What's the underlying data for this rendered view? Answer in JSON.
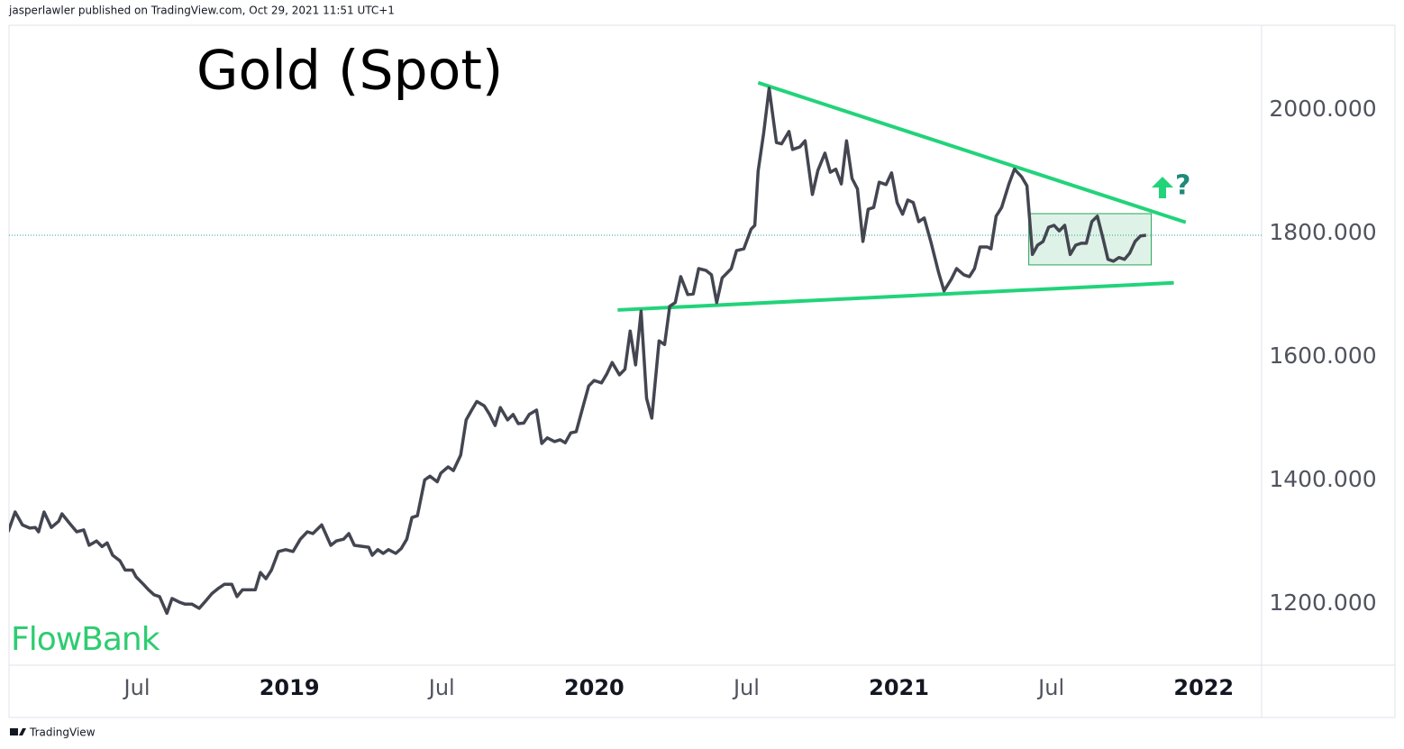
{
  "header": {
    "text": "jasperlawler published on TradingView.com, Oct 29, 2021 11:51 UTC+1"
  },
  "logo": {
    "text": "FlowBank"
  },
  "footer": {
    "text": "TradingView"
  },
  "chart_data": {
    "type": "line",
    "title": "Gold (Spot)",
    "color": "#434651",
    "x": [
      2018.077,
      2018.1,
      2018.124,
      2018.148,
      2018.166,
      2018.177,
      2018.195,
      2018.219,
      2018.243,
      2018.254,
      2018.278,
      2018.302,
      2018.325,
      2018.343,
      2018.367,
      2018.385,
      2018.402,
      2018.42,
      2018.444,
      2018.461,
      2018.485,
      2018.497,
      2018.521,
      2018.538,
      2018.556,
      2018.574,
      2018.598,
      2018.615,
      2018.639,
      2018.657,
      2018.68,
      2018.704,
      2018.722,
      2018.746,
      2018.769,
      2018.787,
      2018.811,
      2018.828,
      2018.846,
      2018.87,
      2018.888,
      2018.905,
      2018.923,
      2018.941,
      2018.964,
      2018.988,
      2019.012,
      2019.036,
      2019.059,
      2019.077,
      2019.106,
      2019.136,
      2019.154,
      2019.178,
      2019.195,
      2019.213,
      2019.243,
      2019.26,
      2019.272,
      2019.29,
      2019.308,
      2019.325,
      2019.349,
      2019.367,
      2019.385,
      2019.402,
      2019.42,
      2019.444,
      2019.461,
      2019.485,
      2019.497,
      2019.521,
      2019.538,
      2019.562,
      2019.58,
      2019.598,
      2019.615,
      2019.639,
      2019.657,
      2019.675,
      2019.692,
      2019.716,
      2019.734,
      2019.751,
      2019.769,
      2019.787,
      2019.811,
      2019.828,
      2019.846,
      2019.87,
      2019.888,
      2019.905,
      2019.923,
      2019.941,
      2019.964,
      2019.982,
      2020.0,
      2020.024,
      2020.041,
      2020.059,
      2020.083,
      2020.101,
      2020.118,
      2020.136,
      2020.154,
      2020.172,
      2020.189,
      2020.213,
      2020.231,
      2020.248,
      2020.266,
      2020.284,
      2020.307,
      2020.325,
      2020.343,
      2020.367,
      2020.385,
      2020.402,
      2020.42,
      2020.438,
      2020.45,
      2020.467,
      2020.491,
      2020.515,
      2020.527,
      2020.538,
      2020.556,
      2020.574,
      2020.598,
      2020.615,
      2020.639,
      2020.651,
      2020.675,
      2020.692,
      2020.716,
      2020.734,
      2020.757,
      2020.775,
      2020.793,
      2020.811,
      2020.828,
      2020.846,
      2020.864,
      2020.882,
      2020.899,
      2020.917,
      2020.935,
      2020.958,
      2020.976,
      2020.994,
      2021.012,
      2021.029,
      2021.047,
      2021.065,
      2021.083,
      2021.106,
      2021.13,
      2021.148,
      2021.172,
      2021.189,
      2021.213,
      2021.231,
      2021.248,
      2021.266,
      2021.29,
      2021.302,
      2021.319,
      2021.337,
      2021.361,
      2021.379,
      2021.402,
      2021.42,
      2021.438,
      2021.455,
      2021.473,
      2021.491,
      2021.509,
      2021.526,
      2021.544,
      2021.562,
      2021.58,
      2021.598,
      2021.615,
      2021.633,
      2021.651,
      2021.669,
      2021.686,
      2021.704,
      2021.722,
      2021.74,
      2021.757,
      2021.775,
      2021.793,
      2021.811
    ],
    "values": [
      1317,
      1349,
      1328,
      1323,
      1324,
      1317,
      1349,
      1324,
      1334,
      1346,
      1331,
      1317,
      1320,
      1295,
      1302,
      1293,
      1299,
      1279,
      1270,
      1255,
      1255,
      1244,
      1232,
      1223,
      1215,
      1212,
      1185,
      1209,
      1203,
      1200,
      1200,
      1193,
      1203,
      1217,
      1226,
      1232,
      1232,
      1212,
      1223,
      1223,
      1223,
      1251,
      1241,
      1255,
      1285,
      1288,
      1285,
      1305,
      1317,
      1314,
      1328,
      1295,
      1302,
      1305,
      1314,
      1295,
      1293,
      1292,
      1279,
      1288,
      1282,
      1288,
      1282,
      1290,
      1305,
      1340,
      1343,
      1401,
      1407,
      1398,
      1412,
      1422,
      1416,
      1441,
      1498,
      1514,
      1528,
      1521,
      1507,
      1489,
      1518,
      1498,
      1507,
      1492,
      1493,
      1507,
      1514,
      1460,
      1469,
      1463,
      1466,
      1461,
      1477,
      1479,
      1521,
      1553,
      1562,
      1558,
      1572,
      1591,
      1571,
      1580,
      1642,
      1587,
      1674,
      1533,
      1501,
      1626,
      1620,
      1682,
      1688,
      1730,
      1701,
      1702,
      1743,
      1740,
      1733,
      1688,
      1728,
      1737,
      1743,
      1772,
      1775,
      1807,
      1813,
      1901,
      1962,
      2035,
      1947,
      1945,
      1965,
      1936,
      1940,
      1950,
      1863,
      1902,
      1930,
      1899,
      1904,
      1880,
      1950,
      1889,
      1872,
      1787,
      1839,
      1842,
      1883,
      1879,
      1898,
      1850,
      1831,
      1854,
      1850,
      1819,
      1825,
      1784,
      1737,
      1707,
      1726,
      1743,
      1733,
      1730,
      1743,
      1778,
      1778,
      1775,
      1828,
      1842,
      1880,
      1904,
      1892,
      1877,
      1766,
      1781,
      1787,
      1810,
      1813,
      1804,
      1813,
      1766,
      1781,
      1784,
      1784,
      1819,
      1828,
      1793,
      1758,
      1755,
      1761,
      1758,
      1768,
      1787,
      1796,
      1797
    ],
    "xlim": [
      2018.08,
      2022.19
    ],
    "xticks": [
      {
        "value": 2018.5,
        "label": "Jul"
      },
      {
        "value": 2019,
        "label": "2019"
      },
      {
        "value": 2019.5,
        "label": "Jul"
      },
      {
        "value": 2020,
        "label": "2020"
      },
      {
        "value": 2020.5,
        "label": "Jul"
      },
      {
        "value": 2021,
        "label": "2021"
      },
      {
        "value": 2021.5,
        "label": "Jul"
      },
      {
        "value": 2022,
        "label": "2022"
      }
    ],
    "ylim": [
      1101,
      2137
    ],
    "yticks": [
      {
        "value": 1200,
        "label": "1200.000"
      },
      {
        "value": 1400,
        "label": "1400.000"
      },
      {
        "value": 1600,
        "label": "1600.000"
      },
      {
        "value": 1800,
        "label": "1800.000"
      },
      {
        "value": 2000,
        "label": "2000.000"
      }
    ],
    "annotations": {
      "trendlines": [
        {
          "x": [
            2020.538,
            2021.941
          ],
          "y": [
            2044,
            1818
          ],
          "color": "#22d37a"
        },
        {
          "x": [
            2020.077,
            2021.902
          ],
          "y": [
            1676,
            1720
          ],
          "color": "#22d37a"
        }
      ],
      "box": {
        "x": [
          2021.426,
          2021.828
        ],
        "y": [
          1749,
          1832
        ],
        "color": "#26a65b"
      },
      "mark": "?"
    }
  }
}
